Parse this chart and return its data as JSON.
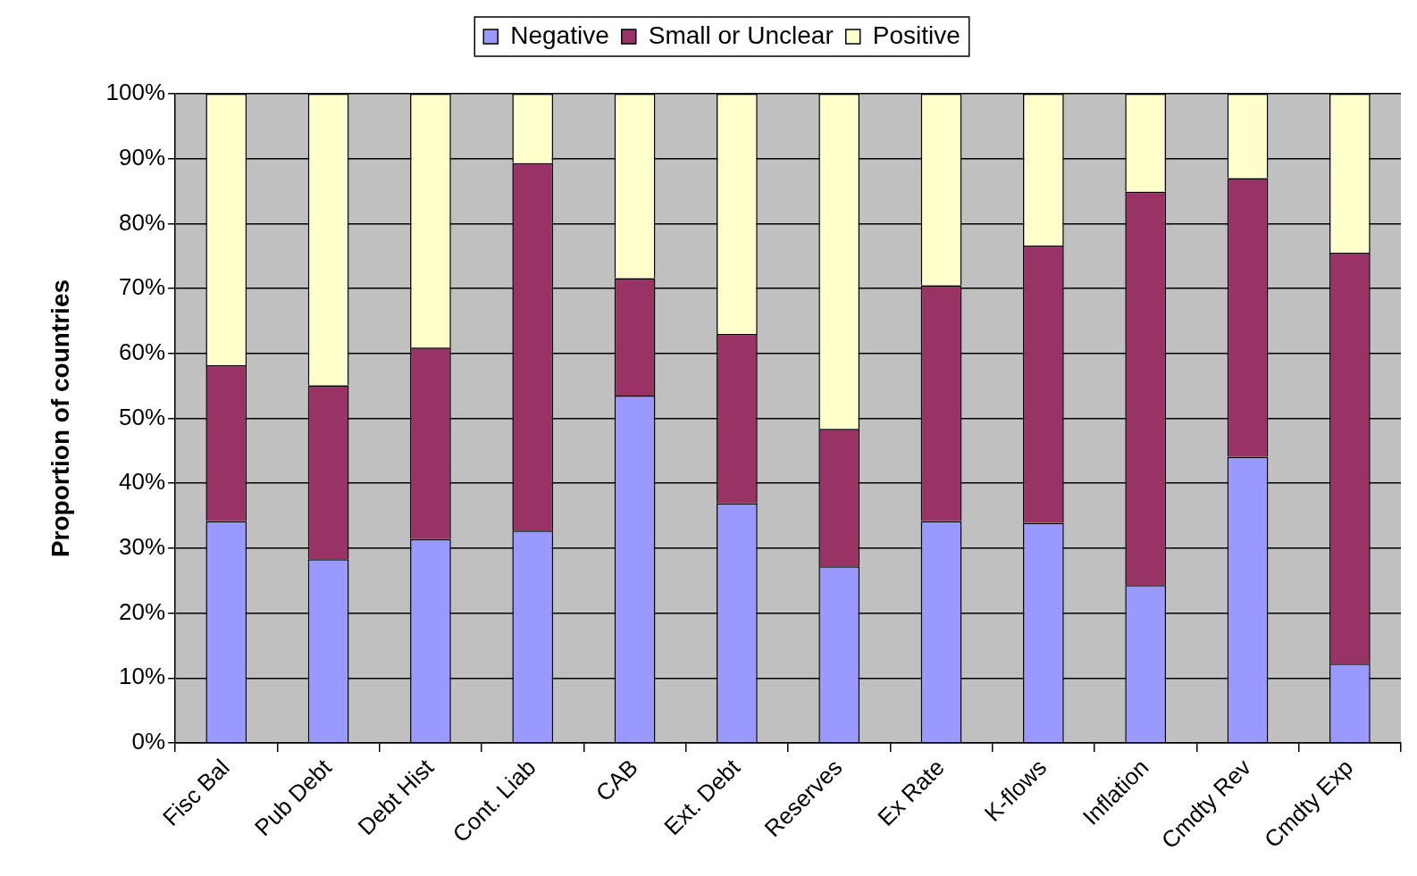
{
  "chart_data": {
    "type": "bar",
    "stacked": true,
    "ylabel": "Proportion of countries",
    "categories": [
      "Fisc Bal",
      "Pub Debt",
      "Debt Hist",
      "Cont. Liab",
      "CAB",
      "Ext. Debt",
      "Reserves",
      "Ex Rate",
      "K-flows",
      "Inflation",
      "Cmdty Rev",
      "Cmdty Exp"
    ],
    "series": [
      {
        "name": "Negative",
        "color": "#9999ff",
        "values": [
          34.2,
          28.3,
          31.4,
          32.7,
          53.5,
          36.9,
          27.2,
          34.2,
          33.9,
          24.3,
          44.1,
          12.2
        ]
      },
      {
        "name": "Small or Unclear",
        "color": "#993366",
        "values": [
          24.0,
          26.8,
          29.5,
          56.6,
          18.1,
          26.1,
          21.2,
          36.3,
          42.7,
          60.6,
          42.9,
          63.3
        ]
      },
      {
        "name": "Positive",
        "color": "#ffffcc",
        "values": [
          41.8,
          44.9,
          39.1,
          10.7,
          28.4,
          37.0,
          51.6,
          29.5,
          23.4,
          15.1,
          13.0,
          24.5
        ]
      }
    ],
    "ylim": [
      0,
      100
    ],
    "yticks": [
      {
        "value": 0,
        "label": "0%"
      },
      {
        "value": 10,
        "label": "10%"
      },
      {
        "value": 20,
        "label": "20%"
      },
      {
        "value": 30,
        "label": "30%"
      },
      {
        "value": 40,
        "label": "40%"
      },
      {
        "value": 50,
        "label": "50%"
      },
      {
        "value": 60,
        "label": "60%"
      },
      {
        "value": 70,
        "label": "70%"
      },
      {
        "value": 80,
        "label": "80%"
      },
      {
        "value": 90,
        "label": "90%"
      },
      {
        "value": 100,
        "label": "100%"
      }
    ],
    "grid": "y",
    "legend": "top"
  }
}
